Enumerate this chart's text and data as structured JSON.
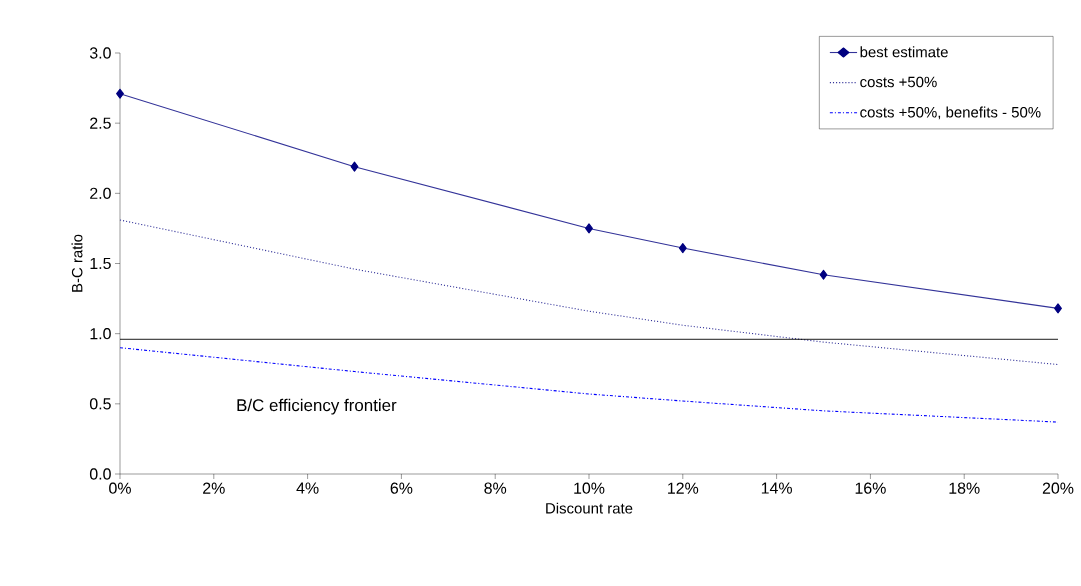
{
  "chart_data": {
    "type": "line",
    "xlabel": "Discount rate",
    "ylabel": "B-C ratio",
    "x": [
      0,
      5,
      10,
      12,
      15,
      20
    ],
    "xlim": [
      0,
      20
    ],
    "xticks": [
      {
        "value": 0,
        "label": "0%"
      },
      {
        "value": 2,
        "label": "2%"
      },
      {
        "value": 4,
        "label": "4%"
      },
      {
        "value": 6,
        "label": "6%"
      },
      {
        "value": 8,
        "label": "8%"
      },
      {
        "value": 10,
        "label": "10%"
      },
      {
        "value": 12,
        "label": "12%"
      },
      {
        "value": 14,
        "label": "14%"
      },
      {
        "value": 16,
        "label": "16%"
      },
      {
        "value": 18,
        "label": "18%"
      },
      {
        "value": 20,
        "label": "20%"
      }
    ],
    "ylim": [
      0,
      3
    ],
    "yticks": [
      {
        "value": 0,
        "label": "0.0"
      },
      {
        "value": 0.5,
        "label": "0.5"
      },
      {
        "value": 1,
        "label": "1.0"
      },
      {
        "value": 1.5,
        "label": "1.5"
      },
      {
        "value": 2,
        "label": "2.0"
      },
      {
        "value": 2.5,
        "label": "2.5"
      },
      {
        "value": 3,
        "label": "3.0"
      }
    ],
    "series": [
      {
        "name": "best estimate",
        "color": "#333399",
        "values": [
          2.71,
          2.19,
          1.75,
          1.61,
          1.42,
          1.18
        ],
        "marker": "diamond",
        "line_style": "solid"
      },
      {
        "name": "costs +50%",
        "color": "#333399",
        "values": [
          1.81,
          1.46,
          1.16,
          1.06,
          0.94,
          0.78
        ],
        "marker": "none",
        "line_style": "dotted"
      },
      {
        "name": "costs +50%, benefits - 50%",
        "color": "#0000ff",
        "values": [
          0.9,
          0.73,
          0.57,
          0.52,
          0.45,
          0.37
        ],
        "marker": "none",
        "line_style": "dashdot"
      }
    ],
    "ref_lines": [
      {
        "axis": "y",
        "value": 0.96,
        "color": "#000000",
        "line_style": "solid"
      }
    ],
    "annotations": [
      "B/C efficiency frontier"
    ],
    "legend": "top right",
    "grid": false
  }
}
